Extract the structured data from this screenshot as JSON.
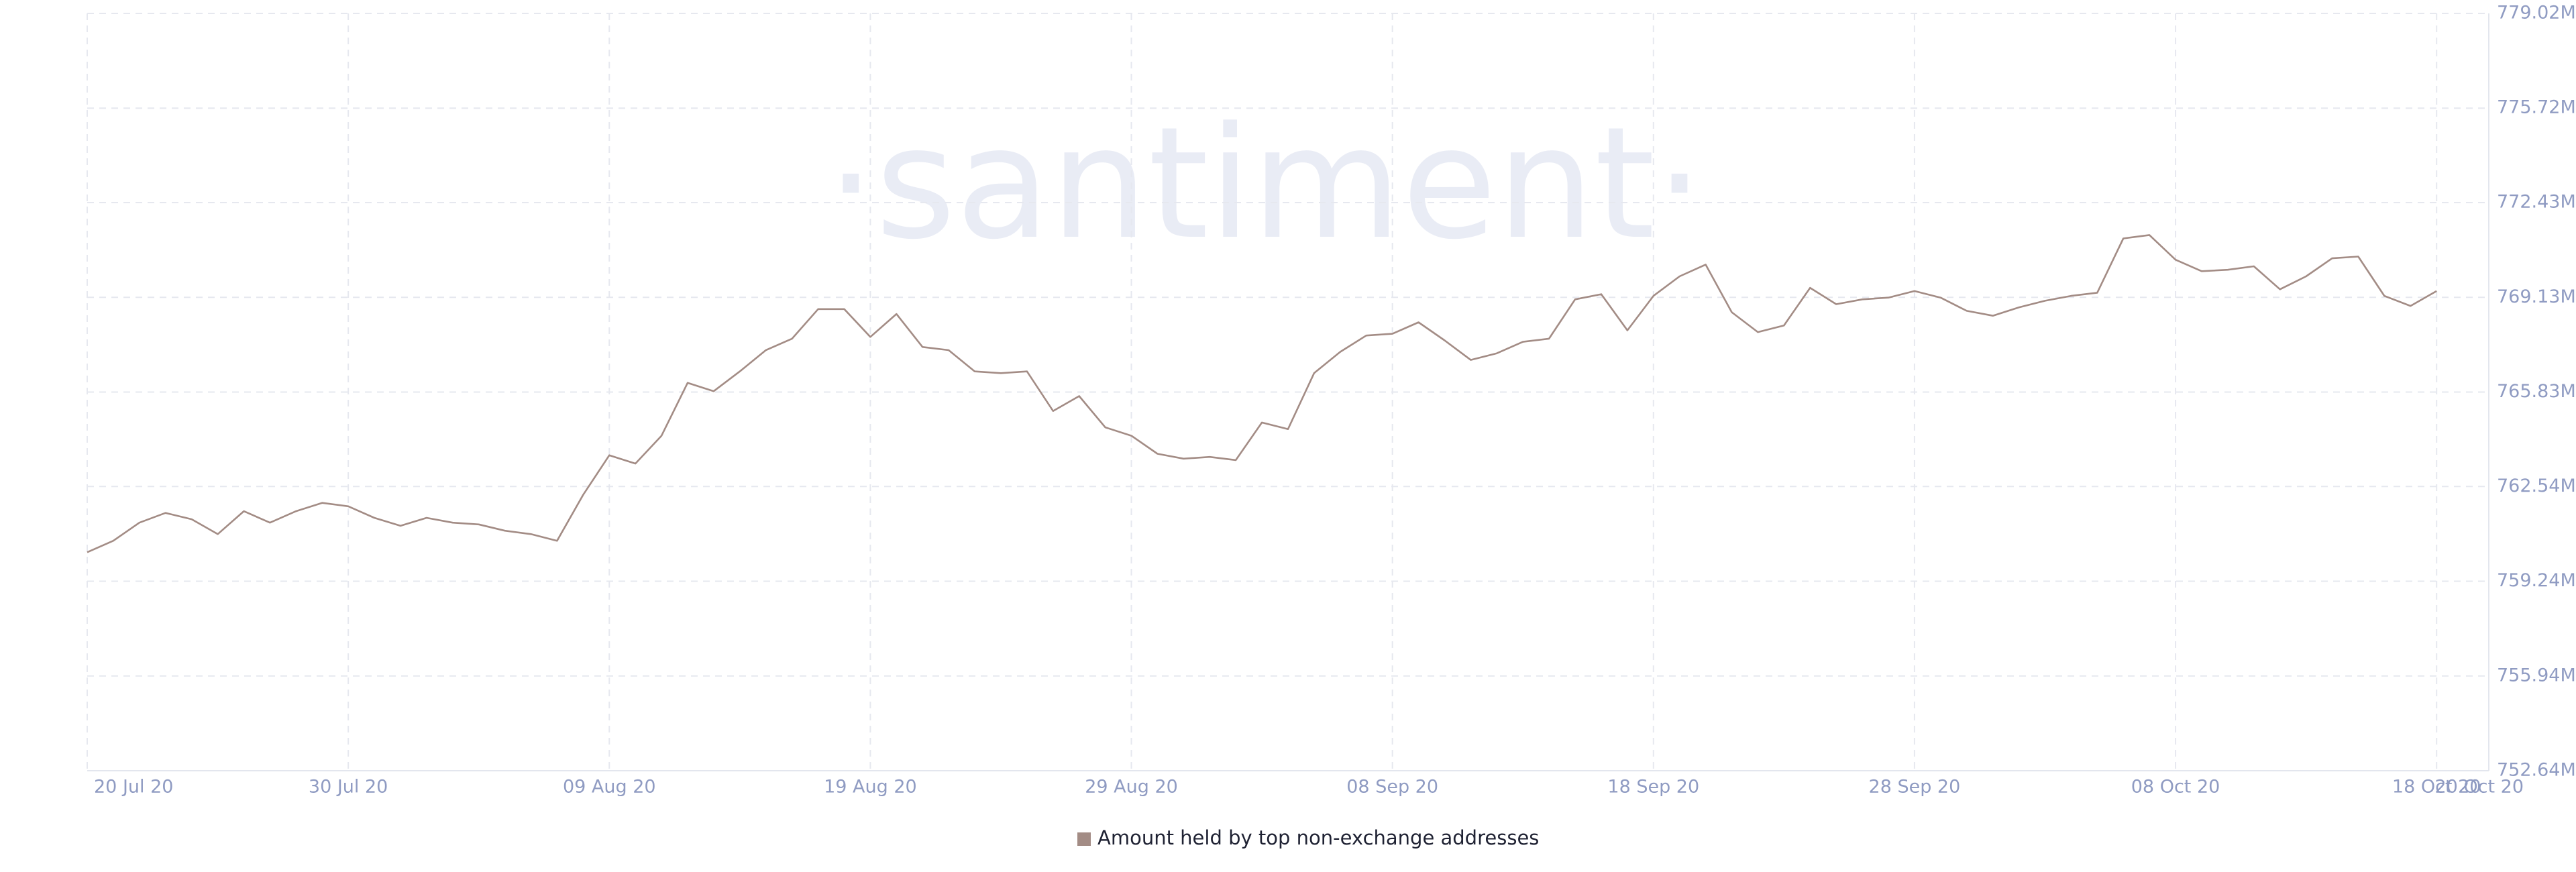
{
  "chart_data": {
    "type": "line",
    "watermark": "·santiment·",
    "x": [
      "2020-07-20",
      "2020-07-21",
      "2020-07-22",
      "2020-07-23",
      "2020-07-24",
      "2020-07-25",
      "2020-07-26",
      "2020-07-27",
      "2020-07-28",
      "2020-07-29",
      "2020-07-30",
      "2020-07-31",
      "2020-08-01",
      "2020-08-02",
      "2020-08-03",
      "2020-08-04",
      "2020-08-05",
      "2020-08-06",
      "2020-08-07",
      "2020-08-08",
      "2020-08-09",
      "2020-08-10",
      "2020-08-11",
      "2020-08-12",
      "2020-08-13",
      "2020-08-14",
      "2020-08-15",
      "2020-08-16",
      "2020-08-17",
      "2020-08-18",
      "2020-08-19",
      "2020-08-20",
      "2020-08-21",
      "2020-08-22",
      "2020-08-23",
      "2020-08-24",
      "2020-08-25",
      "2020-08-26",
      "2020-08-27",
      "2020-08-28",
      "2020-08-29",
      "2020-08-30",
      "2020-08-31",
      "2020-09-01",
      "2020-09-02",
      "2020-09-03",
      "2020-09-04",
      "2020-09-05",
      "2020-09-06",
      "2020-09-07",
      "2020-09-08",
      "2020-09-09",
      "2020-09-10",
      "2020-09-11",
      "2020-09-12",
      "2020-09-13",
      "2020-09-14",
      "2020-09-15",
      "2020-09-16",
      "2020-09-17",
      "2020-09-18",
      "2020-09-19",
      "2020-09-20",
      "2020-09-21",
      "2020-09-22",
      "2020-09-23",
      "2020-09-24",
      "2020-09-25",
      "2020-09-26",
      "2020-09-27",
      "2020-09-28",
      "2020-09-29",
      "2020-09-30",
      "2020-10-01",
      "2020-10-02",
      "2020-10-03",
      "2020-10-04",
      "2020-10-05",
      "2020-10-06",
      "2020-10-07",
      "2020-10-08",
      "2020-10-09",
      "2020-10-10",
      "2020-10-11",
      "2020-10-12",
      "2020-10-13",
      "2020-10-14",
      "2020-10-15",
      "2020-10-16",
      "2020-10-17",
      "2020-10-18"
    ],
    "series": [
      {
        "name": "Amount held by top non-exchange addresses",
        "color": "#a38c85",
        "values": [
          760250000,
          760650000,
          761280000,
          761620000,
          761400000,
          760880000,
          761680000,
          761280000,
          761680000,
          761970000,
          761850000,
          761450000,
          761170000,
          761450000,
          761280000,
          761220000,
          761000000,
          760880000,
          760650000,
          762250000,
          763630000,
          763340000,
          764310000,
          766150000,
          765860000,
          766550000,
          767290000,
          767690000,
          768720000,
          768720000,
          767750000,
          768550000,
          767400000,
          767290000,
          766550000,
          766490000,
          766550000,
          765170000,
          765690000,
          764600000,
          764310000,
          763680000,
          763510000,
          763570000,
          763460000,
          764770000,
          764540000,
          766490000,
          767230000,
          767800000,
          767860000,
          768260000,
          767630000,
          766950000,
          767180000,
          767580000,
          767690000,
          769060000,
          769240000,
          767980000,
          769180000,
          769860000,
          770270000,
          768610000,
          767920000,
          768150000,
          769460000,
          768890000,
          769060000,
          769120000,
          769350000,
          769120000,
          768660000,
          768490000,
          768780000,
          769010000,
          769180000,
          769290000,
          771180000,
          771300000,
          770440000,
          770040000,
          770090000,
          770210000,
          769410000,
          769860000,
          770490000,
          770550000,
          769180000,
          768830000,
          769350000
        ]
      }
    ],
    "xlim": [
      "2020-07-20",
      "2020-10-20"
    ],
    "xticks": [
      {
        "value": "2020-07-20",
        "label": "20 Jul 20"
      },
      {
        "value": "2020-07-30",
        "label": "30 Jul 20"
      },
      {
        "value": "2020-08-09",
        "label": "09 Aug 20"
      },
      {
        "value": "2020-08-19",
        "label": "19 Aug 20"
      },
      {
        "value": "2020-08-29",
        "label": "29 Aug 20"
      },
      {
        "value": "2020-09-08",
        "label": "08 Sep 20"
      },
      {
        "value": "2020-09-18",
        "label": "18 Sep 20"
      },
      {
        "value": "2020-09-28",
        "label": "28 Sep 20"
      },
      {
        "value": "2020-10-08",
        "label": "08 Oct 20"
      },
      {
        "value": "2020-10-18",
        "label": "18 Oct 20"
      },
      {
        "value": "2020-10-20",
        "label": "20 Oct 20"
      }
    ],
    "ylim": [
      752640000,
      779020000
    ],
    "yticks": [
      {
        "value": 752640000,
        "label": "752.64M"
      },
      {
        "value": 755940000,
        "label": "755.94M"
      },
      {
        "value": 759240000,
        "label": "759.24M"
      },
      {
        "value": 762540000,
        "label": "762.54M"
      },
      {
        "value": 765830000,
        "label": "765.83M"
      },
      {
        "value": 769130000,
        "label": "769.13M"
      },
      {
        "value": 772430000,
        "label": "772.43M"
      },
      {
        "value": 775720000,
        "label": "775.72M"
      },
      {
        "value": 779020000,
        "label": "779.02M"
      }
    ],
    "grid": true,
    "legend": "bottom"
  }
}
